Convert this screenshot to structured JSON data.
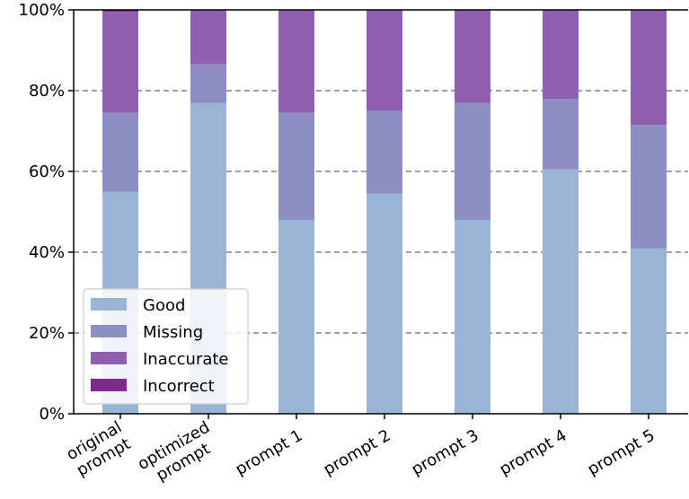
{
  "chart_data": {
    "type": "bar",
    "stacked": true,
    "normalized": true,
    "categories": [
      "original\nprompt",
      "optimized\nprompt",
      "prompt 1",
      "prompt 2",
      "prompt 3",
      "prompt 4",
      "prompt 5"
    ],
    "series": [
      {
        "name": "Good",
        "color": "#9bb4d6",
        "values": [
          55.0,
          77.0,
          48.0,
          54.5,
          48.0,
          60.5,
          41.0
        ]
      },
      {
        "name": "Missing",
        "color": "#8c8fc4",
        "values": [
          19.5,
          9.5,
          26.5,
          20.5,
          29.0,
          17.5,
          30.5
        ]
      },
      {
        "name": "Inaccurate",
        "color": "#8f5fb0",
        "values": [
          25.0,
          13.5,
          25.5,
          25.0,
          23.0,
          22.0,
          28.5
        ]
      },
      {
        "name": "Incorrect",
        "color": "#7e2a8c",
        "values": [
          0.5,
          0.0,
          0.0,
          0.0,
          0.0,
          0.0,
          0.0
        ]
      }
    ],
    "yticks": [
      "0%",
      "20%",
      "40%",
      "60%",
      "80%",
      "100%"
    ],
    "ylim": [
      0,
      100
    ],
    "grid": {
      "y": true,
      "style": "dashed"
    },
    "legend": {
      "placement": "lower-left"
    },
    "xlabel": "",
    "ylabel": "",
    "title": ""
  }
}
